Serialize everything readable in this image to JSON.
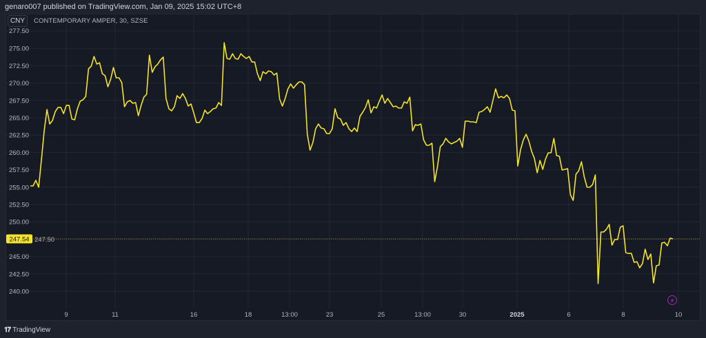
{
  "header": {
    "published": "genaro007 published on TradingView.com, Jan 09, 2025 15:02 UTC+8"
  },
  "symbol": {
    "currency": "CNY",
    "title": "CONTEMPORARY AMPER, 30, SZSE"
  },
  "footer": {
    "brand": "TradingView",
    "logo_mark": "TV"
  },
  "icons": {
    "bolt": "lightning-bolt-icon"
  },
  "colors": {
    "line": "#f5e42a",
    "background": "#161a25",
    "frame": "#1e222d",
    "last_price_tag": "#f5e42a",
    "grid": "#232733"
  },
  "chart_data": {
    "type": "line",
    "title": "CONTEMPORARY AMPER, 30, SZSE",
    "ylabel": "",
    "xlabel": "",
    "ylim": [
      237.5,
      278.3
    ],
    "grid": true,
    "y_ticks": [
      "277.50",
      "275.00",
      "272.50",
      "270.00",
      "267.50",
      "265.00",
      "262.50",
      "260.00",
      "257.50",
      "255.00",
      "252.50",
      "250.00",
      "247.50",
      "245.00",
      "242.50",
      "240.00"
    ],
    "x_ticks": [
      "9",
      "11",
      "16",
      "18",
      "13:00",
      "23",
      "25",
      "13:00",
      "30",
      "2025",
      "6",
      "8",
      "10"
    ],
    "last_price": "247.54",
    "values": [
      255.18,
      255.18,
      255.97,
      254.98,
      258.95,
      263.11,
      266.19,
      264.1,
      264.6,
      265.89,
      266.48,
      266.48,
      265.59,
      266.78,
      266.78,
      264.8,
      264.7,
      266.29,
      267.38,
      267.58,
      268.07,
      272.04,
      272.44,
      273.83,
      272.73,
      272.93,
      271.35,
      271.05,
      269.46,
      270.55,
      272.24,
      270.75,
      270.75,
      270.06,
      266.58,
      267.28,
      267.48,
      267.08,
      267.18,
      265.29,
      266.78,
      267.97,
      268.37,
      274.02,
      271.54,
      272.34,
      272.73,
      273.33,
      273.73,
      267.77,
      266.29,
      265.99,
      266.58,
      268.17,
      267.77,
      268.47,
      267.77,
      266.68,
      266.98,
      265.69,
      264.3,
      264.3,
      264.9,
      266.09,
      265.59,
      265.89,
      266.29,
      266.39,
      267.18,
      266.78,
      275.81,
      273.53,
      273.43,
      274.22,
      273.53,
      273.43,
      274.22,
      273.83,
      273.53,
      273.83,
      273.03,
      273.03,
      271.35,
      270.35,
      271.64,
      271.35,
      271.74,
      271.64,
      271.15,
      271.44,
      267.68,
      266.68,
      267.77,
      269.16,
      269.86,
      269.26,
      269.76,
      270.16,
      270.16,
      269.76,
      262.62,
      260.33,
      261.43,
      263.41,
      264.1,
      263.51,
      263.41,
      262.72,
      262.72,
      263.41,
      266.29,
      265.0,
      264.8,
      263.91,
      264.3,
      263.41,
      263.01,
      263.51,
      263.01,
      265.2,
      265.79,
      266.48,
      267.58,
      265.69,
      266.58,
      266.39,
      267.38,
      268.27,
      267.08,
      267.77,
      267.18,
      266.58,
      266.68,
      266.39,
      266.39,
      267.28,
      267.08,
      267.97,
      263.11,
      264.0,
      263.91,
      264.1,
      261.82,
      261.03,
      261.03,
      261.33,
      255.77,
      257.95,
      260.83,
      261.23,
      262.02,
      261.52,
      261.23,
      261.43,
      261.62,
      262.02,
      260.73,
      264.5,
      264.5,
      264.4,
      264.4,
      264.3,
      265.79,
      265.89,
      266.19,
      266.58,
      265.79,
      267.48,
      269.16,
      267.87,
      268.07,
      267.87,
      268.27,
      267.77,
      266.09,
      265.99,
      258.05,
      260.43,
      261.82,
      262.62,
      261.62,
      260.14,
      259.14,
      257.06,
      258.85,
      257.56,
      259.04,
      259.94,
      259.94,
      262.02,
      259.54,
      259.44,
      257.46,
      257.56,
      257.66,
      253.89,
      253.09,
      256.86,
      257.36,
      258.65,
      256.47,
      254.98,
      254.98,
      255.37,
      256.76,
      241.09,
      248.53,
      248.53,
      248.93,
      249.62,
      246.64,
      247.44,
      247.44,
      249.22,
      249.42,
      245.55,
      245.45,
      245.45,
      244.16,
      244.26,
      243.37,
      243.97,
      246.05,
      244.56,
      245.36,
      241.19,
      243.67,
      243.77,
      246.94,
      247.04,
      246.55,
      247.64,
      247.54
    ]
  }
}
